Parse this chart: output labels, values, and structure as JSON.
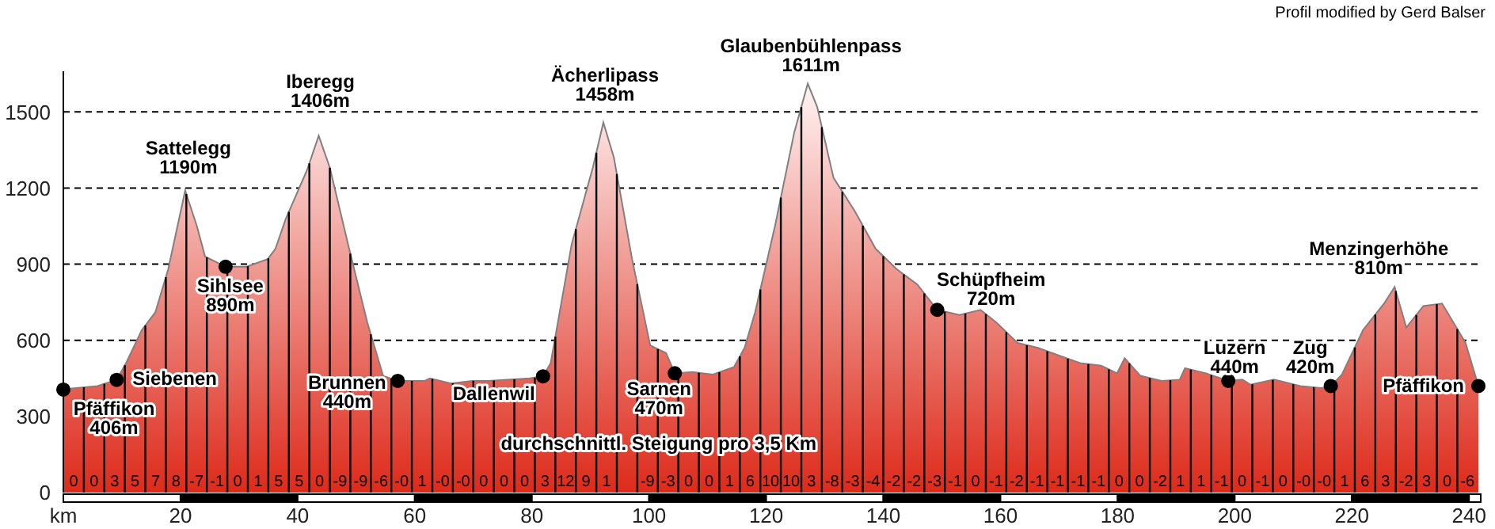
{
  "chart_data": {
    "type": "area",
    "xlim": [
      0,
      242
    ],
    "xticks": [
      {
        "value": 0,
        "label": "km"
      },
      20,
      40,
      60,
      80,
      100,
      120,
      140,
      160,
      180,
      200,
      220,
      240
    ],
    "ylim": [
      0,
      1660
    ],
    "yticks": [
      0,
      300,
      600,
      900,
      1200,
      1500
    ],
    "grid": "y",
    "series": [
      {
        "color": "#dd2a1a",
        "x": [
          0,
          1.5,
          5.8,
          9.1,
          10.7,
          13.4,
          15.7,
          17.9,
          20.8,
          22.8,
          24.2,
          27.7,
          31.3,
          34.9,
          36.2,
          38,
          41.6,
          43.6,
          45.5,
          48.8,
          51.9,
          54.6,
          57.1,
          61.7,
          62.6,
          66.2,
          69.8,
          72.5,
          79.6,
          81.9,
          83.2,
          86.8,
          90.4,
          92.2,
          94,
          97.1,
          100.2,
          102.9,
          104.4,
          107.4,
          110.9,
          114.5,
          116.3,
          118.1,
          121.5,
          124.8,
          127.1,
          128.7,
          131.5,
          135.1,
          138.7,
          142.3,
          145.8,
          149.2,
          153,
          156.6,
          159.3,
          162.9,
          166.4,
          170,
          173.6,
          177.2,
          179.9,
          181.2,
          183.9,
          187.5,
          190.6,
          191.5,
          195.1,
          198.9,
          201.3,
          202.7,
          206.7,
          211.2,
          214.8,
          216.4,
          218.3,
          221.9,
          225.5,
          227.3,
          229.3,
          232.2,
          235.4,
          239.4,
          241.6
        ],
        "values": [
          406,
          410,
          420,
          444,
          510,
          640,
          710,
          880,
          1190,
          1050,
          930,
          890,
          890,
          920,
          960,
          1080,
          1270,
          1406,
          1280,
          960,
          670,
          460,
          440,
          440,
          450,
          430,
          440,
          440,
          450,
          458,
          510,
          980,
          1280,
          1458,
          1320,
          920,
          580,
          550,
          470,
          475,
          465,
          495,
          570,
          710,
          1050,
          1420,
          1611,
          1520,
          1240,
          1110,
          960,
          880,
          820,
          720,
          700,
          720,
          670,
          590,
          570,
          540,
          510,
          500,
          470,
          530,
          460,
          440,
          445,
          490,
          470,
          440,
          445,
          425,
          445,
          420,
          412,
          420,
          465,
          640,
          745,
          810,
          650,
          735,
          745,
          590,
          420
        ]
      },
      {
        "type": "scatter",
        "marker": "circle",
        "color": "#000000",
        "x": [
          0,
          9.1,
          27.7,
          57.1,
          81.9,
          104.4,
          149.2,
          198.9,
          216.4,
          241.6
        ],
        "values": [
          406,
          444,
          890,
          440,
          458,
          470,
          720,
          440,
          420,
          420
        ]
      }
    ],
    "annotations": [
      "Profil modified by Gerd Balser",
      "durchschnittl. Steigung pro 3,5 Km",
      {
        "text": "Pfäffikon\n406m",
        "x": 0,
        "y": 406
      },
      {
        "text": "Siebenen",
        "x": 9.1,
        "y": 444
      },
      {
        "text": "Sattelegg\n1190m",
        "x": 20.8,
        "y": 1190
      },
      {
        "text": "Sihlsee\n890m",
        "x": 27.7,
        "y": 890
      },
      {
        "text": "Iberegg\n1406m",
        "x": 43.6,
        "y": 1406
      },
      {
        "text": "Brunnen\n440m",
        "x": 57.1,
        "y": 440
      },
      {
        "text": "Dallenwil",
        "x": 81.9,
        "y": 458
      },
      {
        "text": "Ächerlipass\n1458m",
        "x": 92.2,
        "y": 1458
      },
      {
        "text": "Sarnen\n470m",
        "x": 104.4,
        "y": 470
      },
      {
        "text": "Glaubenbühlenpass\n1611m",
        "x": 127.1,
        "y": 1611
      },
      {
        "text": "Schüpfheim\n720m",
        "x": 149.2,
        "y": 720
      },
      {
        "text": "Luzern\n440m",
        "x": 198.9,
        "y": 440
      },
      {
        "text": "Zug\n420m",
        "x": 216.4,
        "y": 420
      },
      {
        "text": "Menzingerhöhe\n810m",
        "x": 227.3,
        "y": 810
      },
      {
        "text": "Pfäffikon",
        "x": 241.6,
        "y": 420
      },
      {
        "text": "0",
        "x": 1.75,
        "y": 0
      },
      {
        "text": "0",
        "x": 5.25,
        "y": 0
      },
      {
        "text": "3",
        "x": 8.75,
        "y": 0
      },
      {
        "text": "5",
        "x": 12.25,
        "y": 0
      },
      {
        "text": "7",
        "x": 15.75,
        "y": 0
      },
      {
        "text": "8",
        "x": 19.25,
        "y": 0
      },
      {
        "text": "-7",
        "x": 22.75,
        "y": 0
      },
      {
        "text": "-1",
        "x": 26.25,
        "y": 0
      },
      {
        "text": "0",
        "x": 29.75,
        "y": 0
      },
      {
        "text": "1",
        "x": 33.25,
        "y": 0
      },
      {
        "text": "5",
        "x": 36.75,
        "y": 0
      },
      {
        "text": "5",
        "x": 40.25,
        "y": 0
      },
      {
        "text": "0",
        "x": 43.75,
        "y": 0
      },
      {
        "text": "-9",
        "x": 47.25,
        "y": 0
      },
      {
        "text": "-9",
        "x": 50.75,
        "y": 0
      },
      {
        "text": "-6",
        "x": 54.25,
        "y": 0
      },
      {
        "text": "-0",
        "x": 57.75,
        "y": 0
      },
      {
        "text": "1",
        "x": 61.25,
        "y": 0
      },
      {
        "text": "-0",
        "x": 64.75,
        "y": 0
      },
      {
        "text": "-0",
        "x": 68.25,
        "y": 0
      },
      {
        "text": "0",
        "x": 71.75,
        "y": 0
      },
      {
        "text": "0",
        "x": 75.25,
        "y": 0
      },
      {
        "text": "0",
        "x": 78.75,
        "y": 0
      },
      {
        "text": "3",
        "x": 82.25,
        "y": 0
      },
      {
        "text": "12",
        "x": 85.75,
        "y": 0
      },
      {
        "text": "9",
        "x": 89.25,
        "y": 0
      },
      {
        "text": "1",
        "x": 92.75,
        "y": 0
      },
      {
        "text": "-9",
        "x": 99.75,
        "y": 0
      },
      {
        "text": "-3",
        "x": 103.25,
        "y": 0
      },
      {
        "text": "0",
        "x": 106.75,
        "y": 0
      },
      {
        "text": "0",
        "x": 110.25,
        "y": 0
      },
      {
        "text": "1",
        "x": 113.75,
        "y": 0
      },
      {
        "text": "6",
        "x": 117.25,
        "y": 0
      },
      {
        "text": "10",
        "x": 120.75,
        "y": 0
      },
      {
        "text": "10",
        "x": 124.25,
        "y": 0
      },
      {
        "text": "3",
        "x": 127.75,
        "y": 0
      },
      {
        "text": "-8",
        "x": 131.25,
        "y": 0
      },
      {
        "text": "-3",
        "x": 134.75,
        "y": 0
      },
      {
        "text": "-4",
        "x": 138.25,
        "y": 0
      },
      {
        "text": "-2",
        "x": 141.75,
        "y": 0
      },
      {
        "text": "-2",
        "x": 145.25,
        "y": 0
      },
      {
        "text": "-3",
        "x": 148.75,
        "y": 0
      },
      {
        "text": "-1",
        "x": 152.25,
        "y": 0
      },
      {
        "text": "0",
        "x": 155.75,
        "y": 0
      },
      {
        "text": "-1",
        "x": 159.25,
        "y": 0
      },
      {
        "text": "-2",
        "x": 162.75,
        "y": 0
      },
      {
        "text": "-1",
        "x": 166.25,
        "y": 0
      },
      {
        "text": "-1",
        "x": 169.75,
        "y": 0
      },
      {
        "text": "-1",
        "x": 173.25,
        "y": 0
      },
      {
        "text": "-1",
        "x": 176.75,
        "y": 0
      },
      {
        "text": "0",
        "x": 180.25,
        "y": 0
      },
      {
        "text": "0",
        "x": 183.75,
        "y": 0
      },
      {
        "text": "-2",
        "x": 187.25,
        "y": 0
      },
      {
        "text": "1",
        "x": 190.75,
        "y": 0
      },
      {
        "text": "1",
        "x": 194.25,
        "y": 0
      },
      {
        "text": "-1",
        "x": 197.75,
        "y": 0
      },
      {
        "text": "0",
        "x": 201.25,
        "y": 0
      },
      {
        "text": "-1",
        "x": 204.75,
        "y": 0
      },
      {
        "text": "0",
        "x": 208.25,
        "y": 0
      },
      {
        "text": "-0",
        "x": 211.75,
        "y": 0
      },
      {
        "text": "-0",
        "x": 215.25,
        "y": 0
      },
      {
        "text": "1",
        "x": 218.75,
        "y": 0
      },
      {
        "text": "6",
        "x": 222.25,
        "y": 0
      },
      {
        "text": "3",
        "x": 225.75,
        "y": 0
      },
      {
        "text": "-2",
        "x": 229.25,
        "y": 0
      },
      {
        "text": "3",
        "x": 232.75,
        "y": 0
      },
      {
        "text": "0",
        "x": 236.25,
        "y": 0
      },
      {
        "text": "-6",
        "x": 239.75,
        "y": 0
      }
    ],
    "legend": false
  }
}
